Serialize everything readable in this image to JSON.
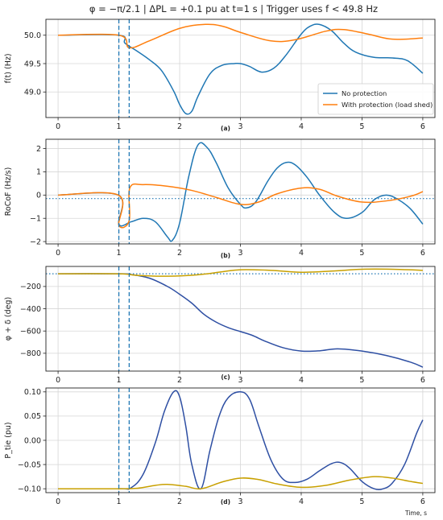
{
  "figure": {
    "title": "φ = −π/2.1 | ΔPL = +0.1 pu at t=1 s | Trigger uses f < 49.8 Hz",
    "xlabel_bottom": "Time, s"
  },
  "colors": {
    "no_protection": "#1f77b4",
    "with_protection": "#ff7f0e",
    "no_protection_lower": "#2e4fa3",
    "with_protection_lower": "#c8a000",
    "event_line": "#1f77b4",
    "ref_line": "#1f77b4",
    "grid": "#d6d6d6"
  },
  "chart_data": [
    {
      "type": "line",
      "panel_label": "(a)",
      "ylabel": "f(t) (Hz)",
      "xlim": [
        -0.2,
        6.2
      ],
      "ylim": [
        48.55,
        50.28
      ],
      "xticks": [
        0,
        1,
        2,
        3,
        4,
        5,
        6
      ],
      "yticks": [
        49.0,
        49.5,
        50.0
      ],
      "ytick_labels": [
        "49.0",
        "49.5",
        "50.0"
      ],
      "grid": true,
      "legend": {
        "placement": "lower-right",
        "entries": [
          "No protection",
          "With protection (load shed)"
        ]
      },
      "event_lines": [
        1.0,
        1.17
      ],
      "ref_line": null,
      "series": [
        {
          "name": "No protection",
          "x": [
            0,
            1.0,
            1.1,
            1.3,
            1.5,
            1.7,
            1.9,
            2.0,
            2.1,
            2.2,
            2.3,
            2.5,
            2.7,
            2.9,
            3.0,
            3.15,
            3.35,
            3.55,
            3.75,
            4.0,
            4.15,
            4.3,
            4.5,
            4.7,
            4.9,
            5.2,
            5.5,
            5.75,
            6.0
          ],
          "values": [
            50.0,
            50.0,
            49.86,
            49.72,
            49.57,
            49.38,
            49.02,
            48.78,
            48.62,
            48.66,
            48.92,
            49.32,
            49.47,
            49.5,
            49.5,
            49.45,
            49.35,
            49.42,
            49.65,
            50.02,
            50.16,
            50.19,
            50.08,
            49.86,
            49.7,
            49.61,
            49.6,
            49.55,
            49.33
          ]
        },
        {
          "name": "With protection (load shed)",
          "x": [
            0,
            1.0,
            1.17,
            1.5,
            2.0,
            2.4,
            2.7,
            3.0,
            3.5,
            3.9,
            4.4,
            4.7,
            5.1,
            5.5,
            6.0
          ],
          "values": [
            50.0,
            50.0,
            49.78,
            49.9,
            50.12,
            50.19,
            50.16,
            50.05,
            49.9,
            49.92,
            50.07,
            50.1,
            50.02,
            49.93,
            49.95
          ]
        }
      ]
    },
    {
      "type": "line",
      "panel_label": "(b)",
      "ylabel": "RoCoF (Hz/s)",
      "xlim": [
        -0.2,
        6.2
      ],
      "ylim": [
        -2.1,
        2.4
      ],
      "xticks": [
        0,
        1,
        2,
        3,
        4,
        5,
        6
      ],
      "yticks": [
        -2,
        -1,
        0,
        1,
        2
      ],
      "ytick_labels": [
        "−2",
        "−1",
        "0",
        "1",
        "2"
      ],
      "grid": true,
      "legend": null,
      "event_lines": [
        1.0,
        1.17
      ],
      "ref_line": -0.15,
      "series": [
        {
          "name": "No protection",
          "x": [
            0,
            0.99,
            1.0,
            1.2,
            1.4,
            1.6,
            1.8,
            1.88,
            2.0,
            2.15,
            2.3,
            2.45,
            2.6,
            2.8,
            3.0,
            3.1,
            3.25,
            3.45,
            3.6,
            3.75,
            3.9,
            4.1,
            4.3,
            4.55,
            4.75,
            5.0,
            5.2,
            5.4,
            5.6,
            5.8,
            6.0
          ],
          "values": [
            0,
            0,
            -1.25,
            -1.15,
            -1.0,
            -1.15,
            -1.8,
            -1.95,
            -1.2,
            0.8,
            2.15,
            2.05,
            1.4,
            0.3,
            -0.4,
            -0.55,
            -0.3,
            0.6,
            1.15,
            1.4,
            1.3,
            0.75,
            0.0,
            -0.75,
            -1.0,
            -0.75,
            -0.2,
            0.0,
            -0.2,
            -0.6,
            -1.25
          ]
        },
        {
          "name": "With protection (load shed)",
          "x": [
            0,
            0.99,
            1.0,
            1.17,
            1.18,
            1.4,
            1.8,
            2.2,
            2.6,
            3.0,
            3.3,
            3.6,
            4.0,
            4.3,
            4.6,
            5.0,
            5.4,
            5.8,
            6.0
          ],
          "values": [
            0,
            0,
            -1.3,
            -1.1,
            0.3,
            0.45,
            0.38,
            0.2,
            -0.1,
            -0.4,
            -0.3,
            0.05,
            0.3,
            0.25,
            -0.05,
            -0.3,
            -0.25,
            -0.05,
            0.15
          ]
        }
      ]
    },
    {
      "type": "line",
      "panel_label": "(c)",
      "ylabel": "φ + δ (deg)",
      "xlim": [
        -0.2,
        6.2
      ],
      "ylim": [
        -960,
        -20
      ],
      "xticks": [
        0,
        1,
        2,
        3,
        4,
        5,
        6
      ],
      "yticks": [
        -200,
        -400,
        -600,
        -800
      ],
      "ytick_labels": [
        "−200",
        "−400",
        "−600",
        "−800"
      ],
      "grid": true,
      "legend": null,
      "event_lines": [
        1.0,
        1.17
      ],
      "ref_line": -86,
      "series": [
        {
          "name": "No protection",
          "x": [
            0,
            1.0,
            1.2,
            1.5,
            1.8,
            2.0,
            2.2,
            2.4,
            2.6,
            2.8,
            3.0,
            3.2,
            3.4,
            3.7,
            4.0,
            4.3,
            4.6,
            5.0,
            5.4,
            5.8,
            6.0
          ],
          "values": [
            -86,
            -86,
            -93,
            -125,
            -200,
            -270,
            -350,
            -450,
            -520,
            -570,
            -605,
            -640,
            -690,
            -750,
            -780,
            -778,
            -760,
            -780,
            -820,
            -880,
            -925
          ]
        },
        {
          "name": "With protection (load shed)",
          "x": [
            0,
            1.0,
            1.3,
            1.8,
            2.3,
            2.7,
            3.0,
            3.5,
            4.0,
            4.5,
            5.0,
            5.5,
            6.0
          ],
          "values": [
            -86,
            -86,
            -100,
            -108,
            -95,
            -68,
            -50,
            -55,
            -72,
            -62,
            -45,
            -45,
            -55
          ]
        }
      ]
    },
    {
      "type": "line",
      "panel_label": "(d)",
      "ylabel": "P_tie (pu)",
      "xlim": [
        -0.2,
        6.2
      ],
      "ylim": [
        -0.108,
        0.108
      ],
      "xticks": [
        0,
        1,
        2,
        3,
        4,
        5,
        6
      ],
      "yticks": [
        -0.1,
        -0.05,
        0.0,
        0.05,
        0.1
      ],
      "ytick_labels": [
        "−0.10",
        "−0.05",
        "0.00",
        "0.05",
        "0.10"
      ],
      "grid": true,
      "legend": null,
      "event_lines": [
        1.0,
        1.17
      ],
      "ref_line": null,
      "series": [
        {
          "name": "No protection",
          "x": [
            0,
            1.0,
            1.2,
            1.4,
            1.6,
            1.75,
            1.9,
            2.0,
            2.1,
            2.2,
            2.35,
            2.5,
            2.65,
            2.8,
            3.0,
            3.15,
            3.3,
            3.5,
            3.7,
            3.9,
            4.1,
            4.3,
            4.5,
            4.65,
            4.8,
            5.0,
            5.2,
            5.35,
            5.5,
            5.7,
            5.9,
            6.0
          ],
          "values": [
            -0.1,
            -0.1,
            -0.098,
            -0.07,
            -0.005,
            0.06,
            0.1,
            0.09,
            0.03,
            -0.05,
            -0.1,
            -0.02,
            0.05,
            0.088,
            0.1,
            0.085,
            0.03,
            -0.04,
            -0.08,
            -0.087,
            -0.08,
            -0.063,
            -0.048,
            -0.046,
            -0.058,
            -0.085,
            -0.1,
            -0.1,
            -0.088,
            -0.05,
            0.015,
            0.042
          ]
        },
        {
          "name": "With protection (load shed)",
          "x": [
            0,
            1.0,
            1.3,
            1.6,
            1.8,
            2.1,
            2.35,
            2.7,
            3.0,
            3.3,
            3.6,
            4.0,
            4.4,
            4.8,
            5.2,
            5.5,
            5.8,
            6.0
          ],
          "values": [
            -0.1,
            -0.1,
            -0.099,
            -0.093,
            -0.091,
            -0.095,
            -0.1,
            -0.086,
            -0.078,
            -0.081,
            -0.09,
            -0.097,
            -0.093,
            -0.082,
            -0.075,
            -0.078,
            -0.085,
            -0.089
          ]
        }
      ]
    }
  ]
}
